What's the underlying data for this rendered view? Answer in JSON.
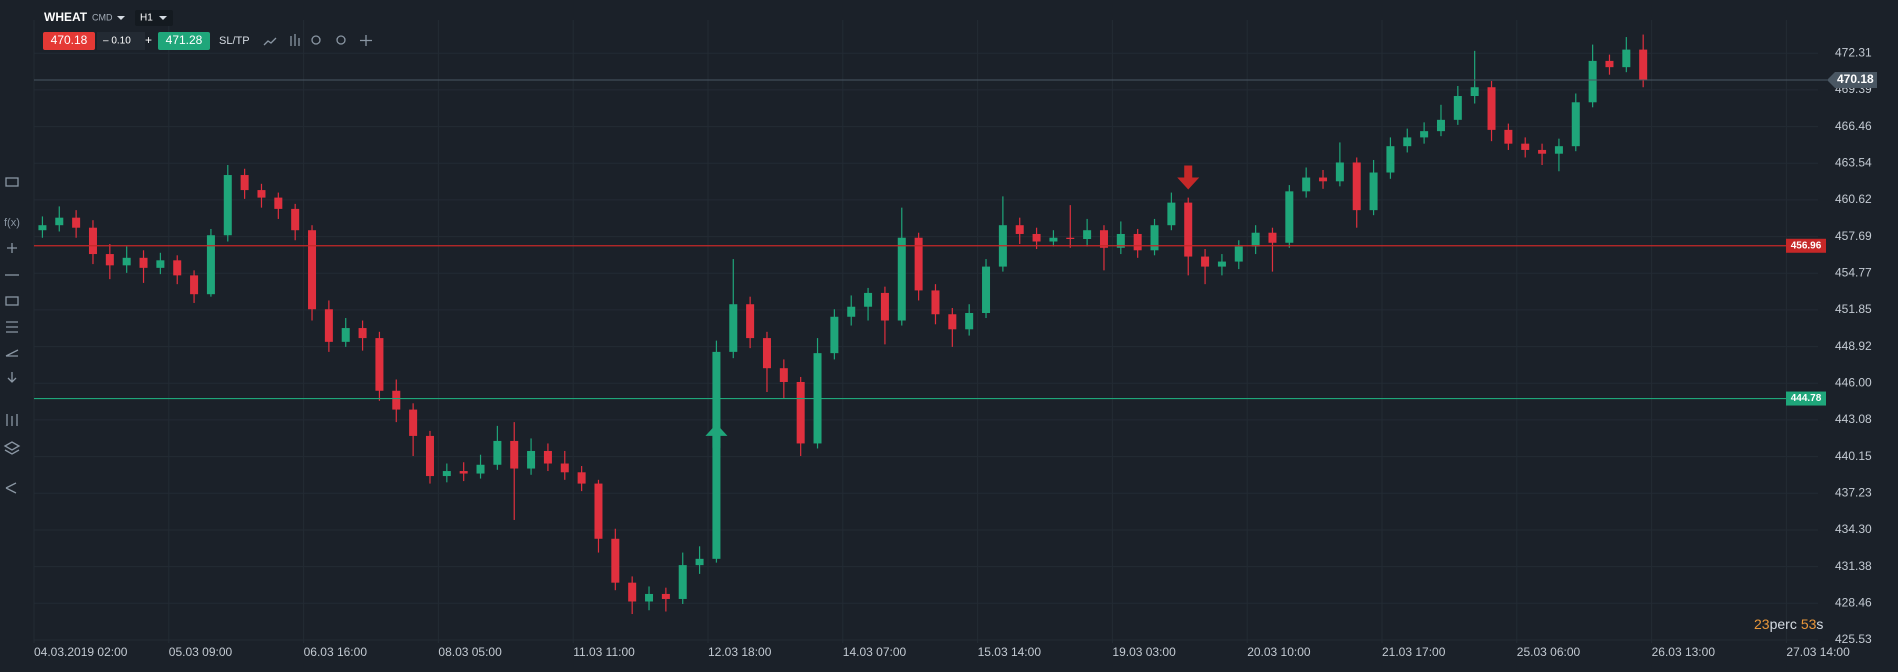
{
  "header": {
    "symbol": "WHEAT",
    "market": "CMD",
    "timeframe": "H1",
    "bid": 470.18,
    "spread": "– 0.10",
    "plus": "+",
    "ask": 471.28,
    "sltp": "SL/TP"
  },
  "toolbar": {
    "fx": "f(x)"
  },
  "countdown": {
    "minutes": "23",
    "min_unit": "perc",
    "seconds": "53",
    "sec_unit": "s"
  },
  "chart_data": {
    "type": "candlestick",
    "categories": [
      "04.03.2019 02:00",
      null,
      null,
      null,
      null,
      null,
      null,
      null,
      "05.03 09:00",
      null,
      null,
      null,
      null,
      null,
      null,
      null,
      "06.03 16:00",
      null,
      null,
      null,
      null,
      null,
      null,
      null,
      "08.03 05:00",
      null,
      null,
      null,
      null,
      null,
      null,
      null,
      "11.03 11:00",
      null,
      null,
      null,
      null,
      null,
      null,
      null,
      "12.03 18:00",
      null,
      null,
      null,
      null,
      null,
      null,
      null,
      "14.03 07:00",
      null,
      null,
      null,
      null,
      null,
      null,
      null,
      "15.03 14:00",
      null,
      null,
      null,
      null,
      null,
      null,
      null,
      "19.03 03:00",
      null,
      null,
      null,
      null,
      null,
      null,
      null,
      "20.03 10:00",
      null,
      null,
      null,
      null,
      null,
      null,
      null,
      "21.03 17:00",
      null,
      null,
      null,
      null,
      null,
      null,
      null,
      "25.03 06:00",
      null,
      null,
      null,
      null,
      null,
      null,
      null,
      "26.03 13:00",
      null,
      null,
      null,
      null,
      null,
      null,
      null,
      "27.03 14:00",
      null
    ],
    "open": [
      458.2,
      458.6,
      459.2,
      458.4,
      456.3,
      455.4,
      456.0,
      455.2,
      455.8,
      454.6,
      453.1,
      457.8,
      462.6,
      461.4,
      460.8,
      459.9,
      458.2,
      451.9,
      449.3,
      450.4,
      449.6,
      445.4,
      443.9,
      441.8,
      438.6,
      439.0,
      438.8,
      439.5,
      441.4,
      439.2,
      440.6,
      439.6,
      438.9,
      438.0,
      433.6,
      430.1,
      428.6,
      429.2,
      428.8,
      431.5,
      432.0,
      448.5,
      452.3,
      449.6,
      447.2,
      446.1,
      441.2,
      448.4,
      451.3,
      452.1,
      453.2,
      451.0,
      457.6,
      453.4,
      451.5,
      450.3,
      451.6,
      455.3,
      458.6,
      457.9,
      457.3,
      457.6,
      457.5,
      458.2,
      456.8,
      457.9,
      456.6,
      458.6,
      460.4,
      456.1,
      455.3,
      455.7,
      456.9,
      458.0,
      457.2,
      461.3,
      462.4,
      462.1,
      463.6,
      459.8,
      462.8,
      464.9,
      465.6,
      466.1,
      467.0,
      468.9,
      469.6,
      466.2,
      465.1,
      464.6,
      464.3,
      464.9,
      468.4,
      471.7,
      471.2,
      472.6,
      null,
      null,
      null,
      null,
      null,
      null,
      null,
      null,
      null,
      null
    ],
    "high": [
      459.3,
      460.1,
      459.8,
      459.0,
      457.1,
      456.9,
      456.6,
      456.4,
      456.2,
      455.0,
      458.3,
      463.4,
      463.1,
      461.9,
      461.2,
      460.3,
      458.6,
      452.6,
      451.2,
      451.0,
      450.1,
      446.3,
      444.4,
      442.2,
      439.6,
      439.7,
      440.3,
      442.6,
      442.9,
      441.6,
      441.2,
      440.6,
      439.4,
      438.3,
      434.4,
      430.6,
      429.8,
      429.7,
      432.5,
      433.0,
      449.4,
      455.9,
      452.9,
      450.1,
      447.9,
      446.5,
      449.6,
      451.9,
      453.0,
      453.6,
      453.7,
      460.0,
      458.0,
      453.9,
      452.0,
      452.3,
      455.9,
      460.9,
      459.2,
      458.4,
      458.2,
      460.2,
      459.1,
      458.6,
      458.9,
      458.3,
      459.1,
      461.2,
      460.8,
      456.7,
      456.3,
      457.4,
      458.6,
      458.4,
      461.8,
      463.2,
      463.0,
      465.2,
      464.0,
      463.8,
      465.6,
      466.3,
      466.8,
      468.2,
      469.7,
      472.5,
      470.1,
      466.7,
      465.6,
      465.1,
      465.5,
      469.1,
      473.0,
      472.2,
      473.6,
      473.8,
      null,
      null,
      null,
      null,
      null,
      null,
      null,
      null,
      null,
      null
    ],
    "low": [
      457.6,
      458.1,
      457.6,
      455.5,
      454.3,
      454.8,
      454.0,
      454.7,
      453.9,
      452.4,
      452.9,
      457.3,
      460.7,
      460.0,
      459.1,
      457.4,
      451.0,
      448.5,
      448.9,
      448.6,
      444.6,
      442.9,
      440.2,
      438.0,
      438.1,
      438.2,
      438.4,
      439.1,
      435.1,
      438.7,
      439.0,
      438.3,
      437.4,
      432.5,
      429.5,
      427.6,
      427.9,
      427.8,
      428.4,
      430.8,
      431.7,
      448.0,
      448.8,
      445.3,
      444.8,
      440.2,
      440.8,
      447.9,
      450.6,
      451.0,
      449.1,
      450.6,
      452.6,
      450.7,
      448.9,
      449.8,
      451.2,
      454.9,
      457.1,
      456.7,
      456.9,
      456.8,
      456.9,
      455.0,
      456.3,
      456.0,
      456.2,
      458.2,
      454.6,
      453.9,
      454.6,
      455.1,
      456.3,
      454.9,
      456.8,
      460.8,
      461.5,
      461.7,
      458.4,
      459.4,
      462.3,
      464.4,
      465.1,
      465.7,
      466.6,
      468.3,
      465.3,
      464.6,
      464.0,
      463.4,
      462.9,
      464.5,
      468.0,
      470.6,
      470.8,
      469.6,
      null,
      null,
      null,
      null,
      null,
      null,
      null,
      null,
      null,
      null
    ],
    "close": [
      458.6,
      459.2,
      458.4,
      456.3,
      455.4,
      456.0,
      455.2,
      455.8,
      454.6,
      453.1,
      457.8,
      462.6,
      461.4,
      460.8,
      459.9,
      458.2,
      451.9,
      449.3,
      450.4,
      449.6,
      445.4,
      443.9,
      441.8,
      438.6,
      439.0,
      438.8,
      439.5,
      441.4,
      439.2,
      440.6,
      439.6,
      438.9,
      438.0,
      433.6,
      430.1,
      428.6,
      429.2,
      428.8,
      431.5,
      432.0,
      448.5,
      452.3,
      449.6,
      447.2,
      446.1,
      441.2,
      448.4,
      451.3,
      452.1,
      453.2,
      451.0,
      457.6,
      453.4,
      451.5,
      450.3,
      451.6,
      455.3,
      458.6,
      457.9,
      457.3,
      457.6,
      457.5,
      458.2,
      456.8,
      457.9,
      456.6,
      458.6,
      460.4,
      456.1,
      455.3,
      455.7,
      456.9,
      458.0,
      457.2,
      461.3,
      462.4,
      462.1,
      463.6,
      459.8,
      462.8,
      464.9,
      465.6,
      466.1,
      467.0,
      468.9,
      469.6,
      466.2,
      465.1,
      464.6,
      464.3,
      464.9,
      468.4,
      471.7,
      471.2,
      472.6,
      470.2,
      null,
      null,
      null,
      null,
      null,
      null,
      null,
      null,
      null,
      null
    ],
    "up_color": "#1fa67a",
    "down_color": "#e0303e",
    "ylim": [
      425.29,
      474.96
    ],
    "yticks": [
      425.53,
      428.46,
      431.38,
      {
        "value": 434.3,
        "label": "434.30"
      },
      437.23,
      440.15,
      443.08,
      {
        "value": 446,
        "label": "446.00"
      },
      448.92,
      451.85,
      454.77,
      457.69,
      460.62,
      463.54,
      466.46,
      469.39,
      472.31
    ],
    "grid": true,
    "last_price": 470.18,
    "price_lines": [
      {
        "value": 456.96,
        "color": "#c62828"
      },
      {
        "value": 444.78,
        "color": "#1fa67a"
      }
    ],
    "markers": [
      {
        "at": 40,
        "value": 441.8,
        "direction": "up",
        "color": "#1fa67a"
      },
      {
        "at": 68,
        "value": 462.4,
        "direction": "down",
        "color": "#c62828"
      }
    ]
  }
}
